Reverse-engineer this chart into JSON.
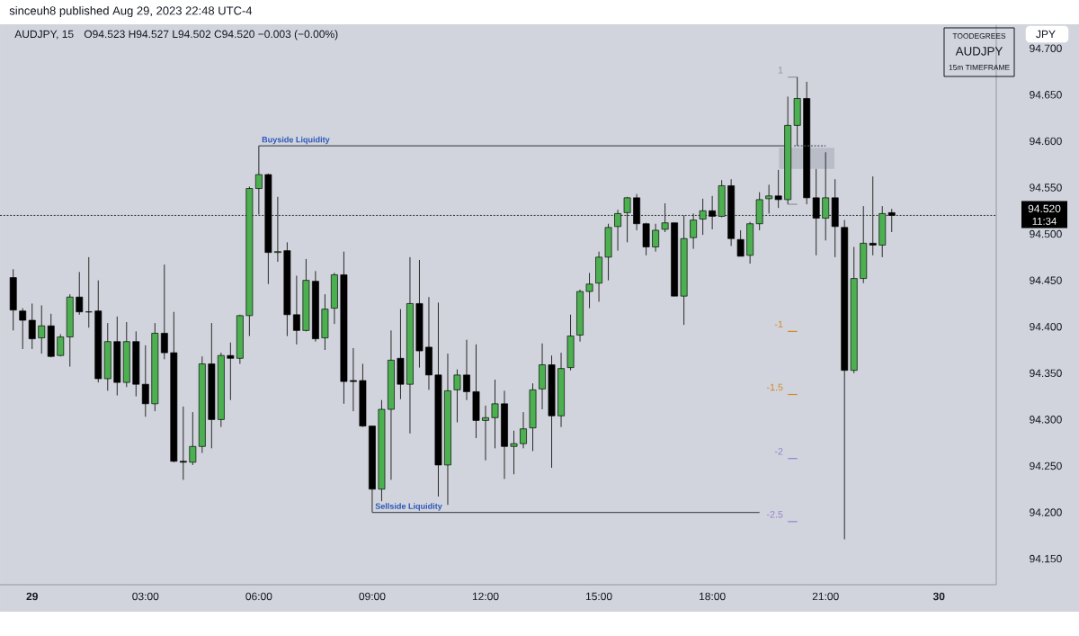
{
  "chart_data": {
    "type": "candlestick",
    "title": "AUDJPY, 15",
    "subtitle": "O94.523 H94.527 L94.502 C94.520 −0.003 (−0.00%)",
    "annotations": [
      "sinceuh8 published Aug 29, 2023 22:48 UTC-4",
      "TOODEGREES",
      "AUDJPY",
      "15m TIMEFRAME",
      "JPY",
      "11:34"
    ],
    "x": [
      "2023-08-28T23:30",
      "2023-08-28T23:45",
      "2023-08-29T00:00",
      "2023-08-29T00:15",
      "2023-08-29T00:30",
      "2023-08-29T00:45",
      "2023-08-29T01:00",
      "2023-08-29T01:15",
      "2023-08-29T01:30",
      "2023-08-29T01:45",
      "2023-08-29T02:00",
      "2023-08-29T02:15",
      "2023-08-29T02:30",
      "2023-08-29T02:45",
      "2023-08-29T03:00",
      "2023-08-29T03:15",
      "2023-08-29T03:30",
      "2023-08-29T03:45",
      "2023-08-29T04:00",
      "2023-08-29T04:15",
      "2023-08-29T04:30",
      "2023-08-29T04:45",
      "2023-08-29T05:00",
      "2023-08-29T05:15",
      "2023-08-29T05:30",
      "2023-08-29T05:45",
      "2023-08-29T06:00",
      "2023-08-29T06:15",
      "2023-08-29T06:30",
      "2023-08-29T06:45",
      "2023-08-29T07:00",
      "2023-08-29T07:15",
      "2023-08-29T07:30",
      "2023-08-29T07:45",
      "2023-08-29T08:00",
      "2023-08-29T08:15",
      "2023-08-29T08:30",
      "2023-08-29T08:45",
      "2023-08-29T09:00",
      "2023-08-29T09:15",
      "2023-08-29T09:30",
      "2023-08-29T09:45",
      "2023-08-29T10:00",
      "2023-08-29T10:15",
      "2023-08-29T10:30",
      "2023-08-29T10:45",
      "2023-08-29T11:00",
      "2023-08-29T11:15",
      "2023-08-29T11:30",
      "2023-08-29T11:45",
      "2023-08-29T12:00",
      "2023-08-29T12:15",
      "2023-08-29T12:30",
      "2023-08-29T12:45",
      "2023-08-29T13:00",
      "2023-08-29T13:15",
      "2023-08-29T13:30",
      "2023-08-29T13:45",
      "2023-08-29T14:00",
      "2023-08-29T14:15",
      "2023-08-29T14:30",
      "2023-08-29T14:45",
      "2023-08-29T15:00",
      "2023-08-29T15:15",
      "2023-08-29T15:30",
      "2023-08-29T15:45",
      "2023-08-29T16:00",
      "2023-08-29T16:15",
      "2023-08-29T16:30",
      "2023-08-29T16:45",
      "2023-08-29T17:00",
      "2023-08-29T17:15",
      "2023-08-29T17:30",
      "2023-08-29T17:45",
      "2023-08-29T18:00",
      "2023-08-29T18:15",
      "2023-08-29T18:30",
      "2023-08-29T18:45",
      "2023-08-29T19:00",
      "2023-08-29T19:15",
      "2023-08-29T19:30",
      "2023-08-29T19:45",
      "2023-08-29T20:00",
      "2023-08-29T20:15",
      "2023-08-29T20:30",
      "2023-08-29T20:45",
      "2023-08-29T21:00",
      "2023-08-29T21:15",
      "2023-08-29T21:30",
      "2023-08-29T21:45",
      "2023-08-29T22:00",
      "2023-08-29T22:15",
      "2023-08-29T22:30",
      "2023-08-29T22:45"
    ],
    "ohlc": [
      [
        94.453,
        94.462,
        94.396,
        94.418
      ],
      [
        94.417,
        94.42,
        94.376,
        94.407
      ],
      [
        94.407,
        94.425,
        94.376,
        94.387
      ],
      [
        94.388,
        94.423,
        94.371,
        94.401
      ],
      [
        94.401,
        94.414,
        94.367,
        94.368
      ],
      [
        94.369,
        94.392,
        94.368,
        94.389
      ],
      [
        94.389,
        94.435,
        94.357,
        94.432
      ],
      [
        94.432,
        94.459,
        94.413,
        94.416
      ],
      [
        94.416,
        94.475,
        94.399,
        94.416
      ],
      [
        94.417,
        94.45,
        94.34,
        94.344
      ],
      [
        94.344,
        94.404,
        94.331,
        94.384
      ],
      [
        94.384,
        94.411,
        94.326,
        94.34
      ],
      [
        94.34,
        94.405,
        94.335,
        94.384
      ],
      [
        94.384,
        94.395,
        94.325,
        94.338
      ],
      [
        94.338,
        94.38,
        94.303,
        94.317
      ],
      [
        94.317,
        94.404,
        94.309,
        94.393
      ],
      [
        94.393,
        94.467,
        94.365,
        94.372
      ],
      [
        94.372,
        94.416,
        94.254,
        94.255
      ],
      [
        94.255,
        94.314,
        94.235,
        94.254
      ],
      [
        94.254,
        94.308,
        94.251,
        94.271
      ],
      [
        94.271,
        94.368,
        94.264,
        94.36
      ],
      [
        94.36,
        94.404,
        94.269,
        94.3
      ],
      [
        94.3,
        94.372,
        94.292,
        94.369
      ],
      [
        94.369,
        94.383,
        94.321,
        94.366
      ],
      [
        94.366,
        94.413,
        94.36,
        94.412
      ],
      [
        94.412,
        94.551,
        94.39,
        94.549
      ],
      [
        94.549,
        94.595,
        94.521,
        94.564
      ],
      [
        94.564,
        94.565,
        94.446,
        94.48
      ],
      [
        94.48,
        94.54,
        94.47,
        94.481
      ],
      [
        94.482,
        94.491,
        94.39,
        94.413
      ],
      [
        94.413,
        94.455,
        94.381,
        94.396
      ],
      [
        94.396,
        94.473,
        94.395,
        94.45
      ],
      [
        94.449,
        94.46,
        94.384,
        94.387
      ],
      [
        94.388,
        94.435,
        94.375,
        94.419
      ],
      [
        94.42,
        94.458,
        94.403,
        94.456
      ],
      [
        94.456,
        94.481,
        94.317,
        94.341
      ],
      [
        94.342,
        94.377,
        94.309,
        94.341
      ],
      [
        94.342,
        94.36,
        94.292,
        94.293
      ],
      [
        94.293,
        94.293,
        94.2,
        94.225
      ],
      [
        94.225,
        94.321,
        94.212,
        94.311
      ],
      [
        94.311,
        94.396,
        94.235,
        94.364
      ],
      [
        94.366,
        94.419,
        94.322,
        94.338
      ],
      [
        94.338,
        94.475,
        94.285,
        94.425
      ],
      [
        94.425,
        94.472,
        94.356,
        94.374
      ],
      [
        94.378,
        94.432,
        94.332,
        94.348
      ],
      [
        94.348,
        94.426,
        94.217,
        94.251
      ],
      [
        94.251,
        94.371,
        94.208,
        94.331
      ],
      [
        94.332,
        94.354,
        94.297,
        94.348
      ],
      [
        94.348,
        94.386,
        94.321,
        94.33
      ],
      [
        94.33,
        94.381,
        94.28,
        94.299
      ],
      [
        94.299,
        94.315,
        94.256,
        94.302
      ],
      [
        94.302,
        94.343,
        94.269,
        94.317
      ],
      [
        94.317,
        94.331,
        94.236,
        94.271
      ],
      [
        94.271,
        94.288,
        94.241,
        94.274
      ],
      [
        94.274,
        94.308,
        94.269,
        94.29
      ],
      [
        94.291,
        94.339,
        94.266,
        94.332
      ],
      [
        94.333,
        94.382,
        94.311,
        94.359
      ],
      [
        94.359,
        94.369,
        94.248,
        94.304
      ],
      [
        94.304,
        94.372,
        94.292,
        94.355
      ],
      [
        94.356,
        94.413,
        94.353,
        94.39
      ],
      [
        94.391,
        94.44,
        94.384,
        94.438
      ],
      [
        94.438,
        94.458,
        94.42,
        94.446
      ],
      [
        94.447,
        94.481,
        94.427,
        94.475
      ],
      [
        94.475,
        94.511,
        94.45,
        94.507
      ],
      [
        94.508,
        94.526,
        94.482,
        94.522
      ],
      [
        94.523,
        94.54,
        94.491,
        94.539
      ],
      [
        94.539,
        94.543,
        94.504,
        94.511
      ],
      [
        94.511,
        94.512,
        94.477,
        94.486
      ],
      [
        94.486,
        94.511,
        94.481,
        94.504
      ],
      [
        94.505,
        94.533,
        94.502,
        94.512
      ],
      [
        94.512,
        94.512,
        94.433,
        94.433
      ],
      [
        94.433,
        94.52,
        94.402,
        94.495
      ],
      [
        94.496,
        94.522,
        94.484,
        94.515
      ],
      [
        94.516,
        94.538,
        94.499,
        94.525
      ],
      [
        94.525,
        94.541,
        94.505,
        94.519
      ],
      [
        94.519,
        94.558,
        94.518,
        94.552
      ],
      [
        94.552,
        94.559,
        94.487,
        94.495
      ],
      [
        94.494,
        94.504,
        94.476,
        94.476
      ],
      [
        94.477,
        94.513,
        94.468,
        94.511
      ],
      [
        94.511,
        94.545,
        94.504,
        94.537
      ],
      [
        94.538,
        94.553,
        94.522,
        94.541
      ],
      [
        94.541,
        94.569,
        94.528,
        94.537
      ],
      [
        94.537,
        94.648,
        94.532,
        94.617
      ],
      [
        94.617,
        94.669,
        94.595,
        94.646
      ],
      [
        94.646,
        94.664,
        94.532,
        94.539
      ],
      [
        94.539,
        94.57,
        94.477,
        94.517
      ],
      [
        94.517,
        94.588,
        94.493,
        94.539
      ],
      [
        94.539,
        94.559,
        94.475,
        94.508
      ],
      [
        94.507,
        94.515,
        94.171,
        94.353
      ],
      [
        94.353,
        94.486,
        94.35,
        94.452
      ],
      [
        94.452,
        94.53,
        94.447,
        94.49
      ],
      [
        94.49,
        94.562,
        94.477,
        94.488
      ],
      [
        94.488,
        94.53,
        94.475,
        94.522
      ],
      [
        94.523,
        94.527,
        94.502,
        94.52
      ]
    ],
    "colors": [
      "#000000",
      "#000000",
      "#000000",
      "#4caf50",
      "#000000",
      "#4caf50",
      "#4caf50",
      "#000000",
      "#000000",
      "#000000",
      "#4caf50",
      "#000000",
      "#4caf50",
      "#000000",
      "#000000",
      "#4caf50",
      "#000000",
      "#000000",
      "#000000",
      "#4caf50",
      "#4caf50",
      "#000000",
      "#4caf50",
      "#000000",
      "#4caf50",
      "#4caf50",
      "#4caf50",
      "#000000",
      "#4caf50",
      "#000000",
      "#000000",
      "#4caf50",
      "#000000",
      "#4caf50",
      "#4caf50",
      "#000000",
      "#000000",
      "#000000",
      "#000000",
      "#4caf50",
      "#4caf50",
      "#000000",
      "#4caf50",
      "#000000",
      "#000000",
      "#000000",
      "#4caf50",
      "#4caf50",
      "#000000",
      "#000000",
      "#4caf50",
      "#4caf50",
      "#000000",
      "#4caf50",
      "#4caf50",
      "#4caf50",
      "#4caf50",
      "#000000",
      "#4caf50",
      "#4caf50",
      "#4caf50",
      "#4caf50",
      "#4caf50",
      "#4caf50",
      "#4caf50",
      "#4caf50",
      "#000000",
      "#000000",
      "#4caf50",
      "#4caf50",
      "#000000",
      "#4caf50",
      "#4caf50",
      "#4caf50",
      "#000000",
      "#4caf50",
      "#000000",
      "#000000",
      "#4caf50",
      "#4caf50",
      "#4caf50",
      "#000000",
      "#4caf50",
      "#4caf50",
      "#000000",
      "#000000",
      "#4caf50",
      "#000000",
      "#000000",
      "#4caf50",
      "#4caf50",
      "#000000",
      "#4caf50",
      "#000000"
    ],
    "series": [
      {
        "type": "line",
        "x": [
          "2023-08-29T19:46",
          "2023-08-29T21:14"
        ],
        "values": [
          null,
          null
        ],
        "lower": [
          94.57,
          94.57
        ],
        "upper": [
          94.593,
          94.593
        ],
        "color": "#b9bdc7"
      },
      {
        "type": "line",
        "name": "Buyside Liquidity",
        "x": [
          "2023-08-29T06:00",
          "2023-08-29T19:55"
        ],
        "values": [
          94.595,
          94.595
        ],
        "color": "#50535e"
      },
      {
        "type": "line",
        "line_style": "dotted",
        "x": [
          "2023-08-29T20:10",
          "2023-08-29T21:00"
        ],
        "values": [
          94.595,
          94.595
        ],
        "color": "#50535e"
      },
      {
        "type": "line",
        "name": "Sellside Liquidity",
        "x": [
          "2023-08-29T09:00",
          "2023-08-29T19:15"
        ],
        "values": [
          94.2,
          94.2
        ],
        "color": "#50535e"
      },
      {
        "type": "line",
        "name": "1",
        "x": [
          "2023-08-29T20:00",
          "2023-08-29T20:15"
        ],
        "values": [
          94.669,
          94.669
        ],
        "color": "#8f929b"
      },
      {
        "type": "line",
        "x": [
          "2023-08-29T20:00",
          "2023-08-29T20:15"
        ],
        "values": [
          94.532,
          94.532
        ],
        "color": "#8f929b"
      },
      {
        "type": "line",
        "name": "-1",
        "x": [
          "2023-08-29T20:00",
          "2023-08-29T20:15"
        ],
        "values": [
          94.395,
          94.395
        ],
        "color": "#d08a2a"
      },
      {
        "type": "line",
        "name": "-1.5",
        "x": [
          "2023-08-29T20:00",
          "2023-08-29T20:15"
        ],
        "values": [
          94.327,
          94.327
        ],
        "color": "#d08a2a"
      },
      {
        "type": "line",
        "name": "-2",
        "x": [
          "2023-08-29T20:00",
          "2023-08-29T20:15"
        ],
        "values": [
          94.258,
          94.258
        ],
        "color": "#9580d3"
      },
      {
        "type": "line",
        "name": "-2.5",
        "x": [
          "2023-08-29T20:00",
          "2023-08-29T20:15"
        ],
        "values": [
          94.19,
          94.19
        ],
        "color": "#9580d3"
      }
    ],
    "ref_lines": [
      {
        "axis": "y",
        "value": 94.52,
        "label": "94.520",
        "color": "#000000",
        "line_style": "dotted"
      }
    ],
    "xlim": [
      "2023-08-28T23:09",
      "2023-08-30T01:31"
    ],
    "xticks": [
      {
        "value": "2023-08-29T00:00",
        "label": "29"
      },
      {
        "value": "2023-08-29T03:00",
        "label": "03:00"
      },
      {
        "value": "2023-08-29T06:00",
        "label": "06:00"
      },
      {
        "value": "2023-08-29T09:00",
        "label": "09:00"
      },
      {
        "value": "2023-08-29T12:00",
        "label": "12:00"
      },
      {
        "value": "2023-08-29T15:00",
        "label": "15:00"
      },
      {
        "value": "2023-08-29T18:00",
        "label": "18:00"
      },
      {
        "value": "2023-08-29T21:00",
        "label": "21:00"
      },
      {
        "value": "2023-08-30T00:00",
        "label": "30"
      }
    ],
    "ylim": [
      94.122,
      94.725
    ],
    "yticks": [
      {
        "value": 94.15,
        "label": "94.150"
      },
      {
        "value": 94.2,
        "label": "94.200"
      },
      {
        "value": 94.25,
        "label": "94.250"
      },
      {
        "value": 94.3,
        "label": "94.300"
      },
      {
        "value": 94.35,
        "label": "94.350"
      },
      {
        "value": 94.4,
        "label": "94.400"
      },
      {
        "value": 94.45,
        "label": "94.450"
      },
      {
        "value": 94.5,
        "label": "94.500"
      },
      {
        "value": 94.55,
        "label": "94.550"
      },
      {
        "value": 94.6,
        "label": "94.600"
      },
      {
        "value": 94.65,
        "label": "94.650"
      },
      {
        "value": 94.7,
        "label": "94.700"
      }
    ]
  }
}
